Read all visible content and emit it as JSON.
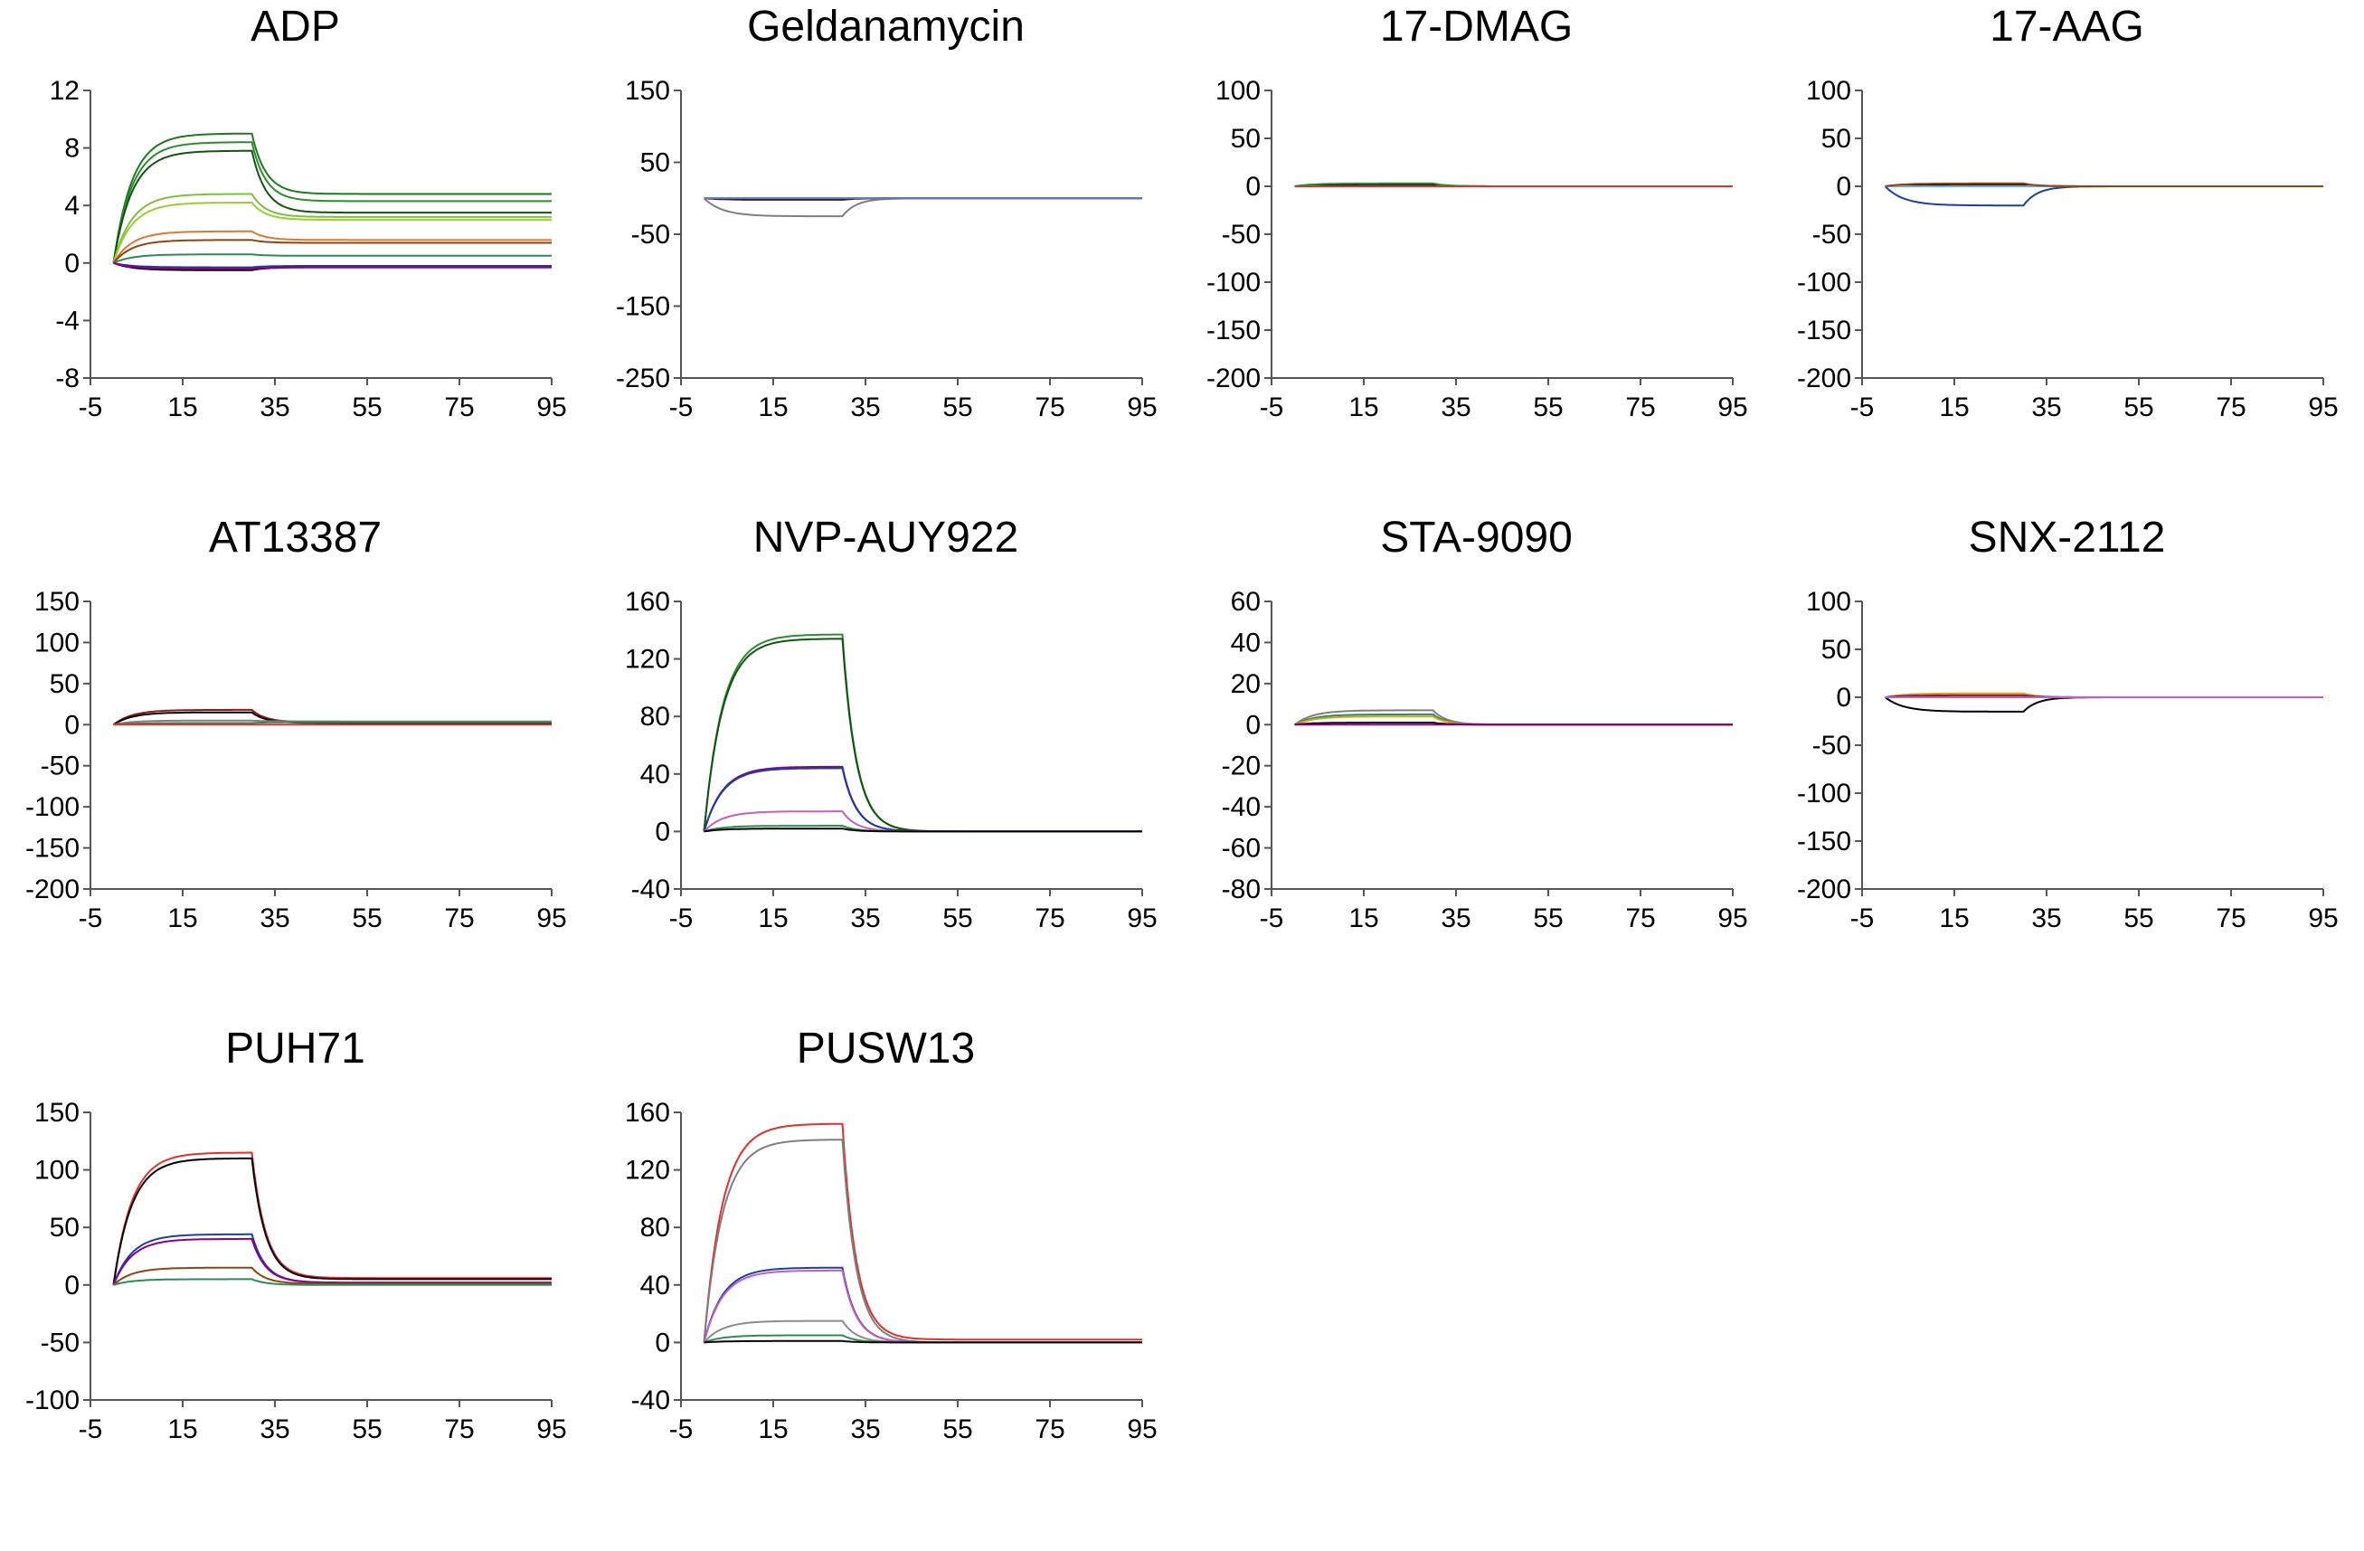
{
  "chart_data": [
    {
      "type": "line",
      "title": "ADP",
      "xlabel": "",
      "ylabel": "",
      "xlim": [
        -5,
        95
      ],
      "ylim": [
        -8,
        12
      ],
      "xticks": [
        -5,
        15,
        35,
        55,
        75,
        95
      ],
      "yticks": [
        -8,
        -4,
        0,
        4,
        8,
        12
      ],
      "injection": [
        0,
        30
      ],
      "series": [
        {
          "color": "#1e7a1e",
          "plateau": 9.0,
          "end": 4.8
        },
        {
          "color": "#2e8b2e",
          "plateau": 8.4,
          "end": 4.3
        },
        {
          "color": "#145214",
          "plateau": 7.8,
          "end": 3.5
        },
        {
          "color": "#7fbf3f",
          "plateau": 4.8,
          "end": 3.2
        },
        {
          "color": "#9acd32",
          "plateau": 4.2,
          "end": 3.0
        },
        {
          "color": "#e0772e",
          "plateau": 2.2,
          "end": 1.6
        },
        {
          "color": "#8b4513",
          "plateau": 1.6,
          "end": 1.4
        },
        {
          "color": "#2e8b57",
          "plateau": 0.6,
          "end": 0.5
        },
        {
          "color": "#1e3f9e",
          "plateau": -0.3,
          "end": -0.2
        },
        {
          "color": "#000000",
          "plateau": -0.5,
          "end": -0.3
        },
        {
          "color": "#8b008b",
          "plateau": -0.4,
          "end": -0.3
        }
      ]
    },
    {
      "type": "line",
      "title": "Geldanamycin",
      "xlabel": "",
      "ylabel": "",
      "xlim": [
        -5,
        95
      ],
      "ylim": [
        -250,
        150
      ],
      "xticks": [
        -5,
        15,
        35,
        55,
        75,
        95
      ],
      "yticks": [
        -250,
        -150,
        -50,
        50,
        150
      ],
      "injection": [
        0,
        30
      ],
      "series": [
        {
          "color": "#000000",
          "plateau": -2,
          "end": 0
        },
        {
          "color": "#7f7f7f",
          "plateau": -25,
          "end": 0
        },
        {
          "color": "#e03030",
          "plateau": 0,
          "end": 0
        },
        {
          "color": "#4a7fd4",
          "plateau": 0,
          "end": 0
        }
      ]
    },
    {
      "type": "line",
      "title": "17-DMAG",
      "xlabel": "",
      "ylabel": "",
      "xlim": [
        -5,
        95
      ],
      "ylim": [
        -200,
        100
      ],
      "xticks": [
        -5,
        15,
        35,
        55,
        75,
        95
      ],
      "yticks": [
        -200,
        -150,
        -100,
        -50,
        0,
        50,
        100
      ],
      "injection": [
        0,
        30
      ],
      "series": [
        {
          "color": "#000000",
          "plateau": 2,
          "end": 0
        },
        {
          "color": "#2e8b2e",
          "plateau": 3,
          "end": 0
        },
        {
          "color": "#6fa8ef",
          "plateau": 0,
          "end": 0
        },
        {
          "color": "#e03030",
          "plateau": 0,
          "end": 0
        }
      ]
    },
    {
      "type": "line",
      "title": "17-AAG",
      "xlabel": "",
      "ylabel": "",
      "xlim": [
        -5,
        95
      ],
      "ylim": [
        -200,
        100
      ],
      "xticks": [
        -5,
        15,
        35,
        55,
        75,
        95
      ],
      "yticks": [
        -200,
        -150,
        -100,
        -50,
        0,
        50,
        100
      ],
      "injection": [
        0,
        30
      ],
      "series": [
        {
          "color": "#000000",
          "plateau": 2,
          "end": 0
        },
        {
          "color": "#1e3f9e",
          "plateau": -20,
          "end": 0
        },
        {
          "color": "#6fa8ef",
          "plateau": 0,
          "end": 0
        },
        {
          "color": "#8b4513",
          "plateau": 3,
          "end": 0
        }
      ]
    },
    {
      "type": "line",
      "title": "AT13387",
      "xlabel": "",
      "ylabel": "",
      "xlim": [
        -5,
        95
      ],
      "ylim": [
        -200,
        150
      ],
      "xticks": [
        -5,
        15,
        35,
        55,
        75,
        95
      ],
      "yticks": [
        -200,
        -150,
        -100,
        -50,
        0,
        50,
        100,
        150
      ],
      "injection": [
        0,
        30
      ],
      "series": [
        {
          "color": "#8b1a1a",
          "plateau": 18,
          "end": 3
        },
        {
          "color": "#000000",
          "plateau": 15,
          "end": 2
        },
        {
          "color": "#7f7f7f",
          "plateau": 5,
          "end": 4
        },
        {
          "color": "#2e8b57",
          "plateau": 2,
          "end": 3
        },
        {
          "color": "#e03030",
          "plateau": 0,
          "end": 0
        }
      ]
    },
    {
      "type": "line",
      "title": "NVP-AUY922",
      "xlabel": "",
      "ylabel": "",
      "xlim": [
        -5,
        95
      ],
      "ylim": [
        -40,
        160
      ],
      "xticks": [
        -5,
        15,
        35,
        55,
        75,
        95
      ],
      "yticks": [
        -40,
        0,
        40,
        80,
        120,
        160
      ],
      "injection": [
        0,
        30
      ],
      "series": [
        {
          "color": "#2e8b2e",
          "plateau": 137,
          "end": 0
        },
        {
          "color": "#145214",
          "plateau": 134,
          "end": 0
        },
        {
          "color": "#8b008b",
          "plateau": 45,
          "end": 0
        },
        {
          "color": "#1e3f9e",
          "plateau": 44,
          "end": 0
        },
        {
          "color": "#c060c0",
          "plateau": 14,
          "end": 0
        },
        {
          "color": "#2e8b57",
          "plateau": 4,
          "end": 0
        },
        {
          "color": "#000000",
          "plateau": 2,
          "end": 0
        }
      ]
    },
    {
      "type": "line",
      "title": "STA-9090",
      "xlabel": "",
      "ylabel": "",
      "xlim": [
        -5,
        95
      ],
      "ylim": [
        -80,
        60
      ],
      "xticks": [
        -5,
        15,
        35,
        55,
        75,
        95
      ],
      "yticks": [
        -80,
        -60,
        -40,
        -20,
        0,
        20,
        40,
        60
      ],
      "injection": [
        0,
        30
      ],
      "series": [
        {
          "color": "#7f7f7f",
          "plateau": 7,
          "end": 0
        },
        {
          "color": "#2e8b57",
          "plateau": 5,
          "end": 0
        },
        {
          "color": "#d4a017",
          "plateau": 4,
          "end": 0
        },
        {
          "color": "#000000",
          "plateau": 1,
          "end": 0
        },
        {
          "color": "#8b008b",
          "plateau": 0,
          "end": 0
        }
      ]
    },
    {
      "type": "line",
      "title": "SNX-2112",
      "xlabel": "",
      "ylabel": "",
      "xlim": [
        -5,
        95
      ],
      "ylim": [
        -200,
        100
      ],
      "xticks": [
        -5,
        15,
        35,
        55,
        75,
        95
      ],
      "yticks": [
        -200,
        -150,
        -100,
        -50,
        0,
        50,
        100
      ],
      "injection": [
        0,
        30
      ],
      "series": [
        {
          "color": "#d4a017",
          "plateau": 4,
          "end": 0
        },
        {
          "color": "#000000",
          "plateau": -15,
          "end": 0
        },
        {
          "color": "#8b1a1a",
          "plateau": 2,
          "end": 0
        },
        {
          "color": "#c060c0",
          "plateau": 0,
          "end": 0
        }
      ]
    },
    {
      "type": "line",
      "title": "PUH71",
      "xlabel": "",
      "ylabel": "",
      "xlim": [
        -5,
        95
      ],
      "ylim": [
        -100,
        150
      ],
      "xticks": [
        -5,
        15,
        35,
        55,
        75,
        95
      ],
      "yticks": [
        -100,
        -50,
        0,
        50,
        100,
        150
      ],
      "injection": [
        0,
        30
      ],
      "series": [
        {
          "color": "#e03030",
          "plateau": 115,
          "end": 6
        },
        {
          "color": "#000000",
          "plateau": 110,
          "end": 5
        },
        {
          "color": "#1e3f9e",
          "plateau": 44,
          "end": 2
        },
        {
          "color": "#8b008b",
          "plateau": 40,
          "end": 2
        },
        {
          "color": "#8b4513",
          "plateau": 15,
          "end": 1
        },
        {
          "color": "#2e8b57",
          "plateau": 5,
          "end": 0
        }
      ]
    },
    {
      "type": "line",
      "title": "PUSW13",
      "xlabel": "",
      "ylabel": "",
      "xlim": [
        -5,
        95
      ],
      "ylim": [
        -40,
        160
      ],
      "xticks": [
        -5,
        15,
        35,
        55,
        75,
        95
      ],
      "yticks": [
        -40,
        0,
        40,
        80,
        120,
        160
      ],
      "injection": [
        0,
        30
      ],
      "series": [
        {
          "color": "#e03030",
          "plateau": 152,
          "end": 2
        },
        {
          "color": "#7f7f7f",
          "plateau": 141,
          "end": 0
        },
        {
          "color": "#1e3f9e",
          "plateau": 52,
          "end": 0
        },
        {
          "color": "#c060c0",
          "plateau": 50,
          "end": 0
        },
        {
          "color": "#8b8b8b",
          "plateau": 15,
          "end": 0
        },
        {
          "color": "#2e8b57",
          "plateau": 5,
          "end": 0
        },
        {
          "color": "#000000",
          "plateau": 1,
          "end": 0
        }
      ]
    }
  ]
}
